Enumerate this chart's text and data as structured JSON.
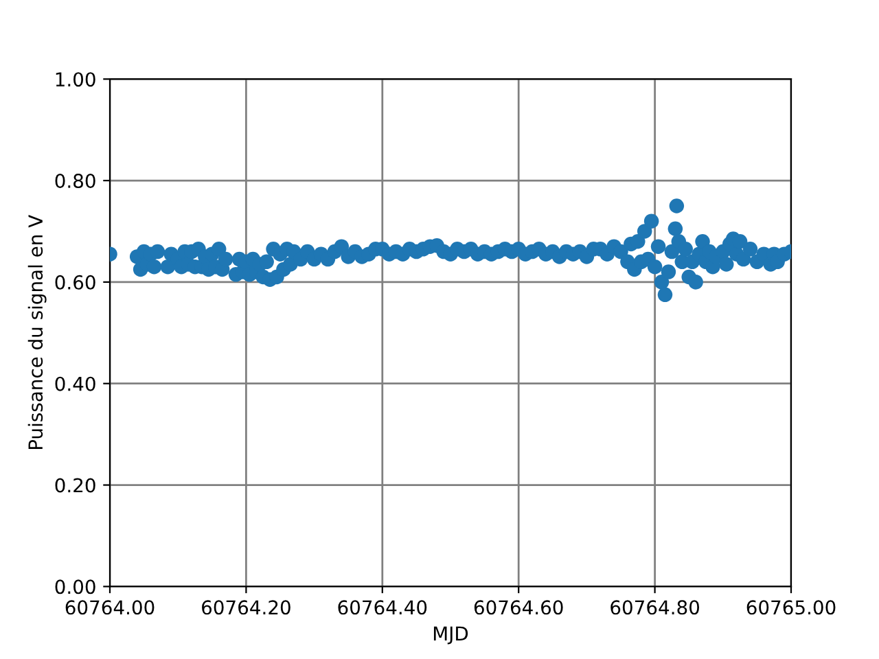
{
  "chart_data": {
    "type": "scatter",
    "xlabel": "MJD",
    "ylabel": "Puissance du signal en V",
    "grid": true,
    "marker": "circle",
    "xlim": [
      60764.0,
      60765.0
    ],
    "ylim": [
      0.0,
      1.0
    ],
    "xticks": [
      {
        "value": 60764.0,
        "label": "60764.00"
      },
      {
        "value": 60764.2,
        "label": "60764.20"
      },
      {
        "value": 60764.4,
        "label": "60764.40"
      },
      {
        "value": 60764.6,
        "label": "60764.60"
      },
      {
        "value": 60764.8,
        "label": "60764.80"
      },
      {
        "value": 60765.0,
        "label": "60765.00"
      }
    ],
    "yticks": [
      {
        "value": 0.0,
        "label": "0.00"
      },
      {
        "value": 0.2,
        "label": "0.20"
      },
      {
        "value": 0.4,
        "label": "0.40"
      },
      {
        "value": 0.6,
        "label": "0.60"
      },
      {
        "value": 0.8,
        "label": "0.80"
      },
      {
        "value": 1.0,
        "label": "1.00"
      }
    ],
    "series": [
      {
        "color": "#1f77b4",
        "x": [
          60764.0,
          60764.04,
          60764.045,
          60764.05,
          60764.055,
          60764.06,
          60764.065,
          60764.07,
          60764.085,
          60764.09,
          60764.1,
          60764.105,
          60764.11,
          60764.115,
          60764.12,
          60764.125,
          60764.13,
          60764.135,
          60764.14,
          60764.145,
          60764.15,
          60764.155,
          60764.16,
          60764.165,
          60764.17,
          60764.185,
          60764.19,
          60764.195,
          60764.2,
          60764.205,
          60764.21,
          60764.215,
          60764.22,
          60764.225,
          60764.23,
          60764.235,
          60764.24,
          60764.245,
          60764.25,
          60764.255,
          60764.26,
          60764.265,
          60764.27,
          60764.28,
          60764.29,
          60764.3,
          60764.31,
          60764.32,
          60764.33,
          60764.34,
          60764.35,
          60764.36,
          60764.37,
          60764.38,
          60764.39,
          60764.4,
          60764.41,
          60764.42,
          60764.43,
          60764.44,
          60764.45,
          60764.46,
          60764.47,
          60764.48,
          60764.49,
          60764.5,
          60764.51,
          60764.52,
          60764.53,
          60764.54,
          60764.55,
          60764.56,
          60764.57,
          60764.58,
          60764.59,
          60764.6,
          60764.61,
          60764.62,
          60764.63,
          60764.64,
          60764.65,
          60764.66,
          60764.67,
          60764.68,
          60764.69,
          60764.7,
          60764.71,
          60764.72,
          60764.73,
          60764.74,
          60764.75,
          60764.76,
          60764.765,
          60764.77,
          60764.775,
          60764.78,
          60764.785,
          60764.79,
          60764.795,
          60764.8,
          60764.805,
          60764.81,
          60764.815,
          60764.82,
          60764.825,
          60764.83,
          60764.832,
          60764.835,
          60764.84,
          60764.845,
          60764.85,
          60764.855,
          60764.86,
          60764.865,
          60764.87,
          60764.875,
          60764.88,
          60764.885,
          60764.89,
          60764.9,
          60764.905,
          60764.91,
          60764.915,
          60764.92,
          60764.925,
          60764.93,
          60764.94,
          60764.95,
          60764.96,
          60764.97,
          60764.975,
          60764.98,
          60764.99,
          60765.0
        ],
        "values": [
          0.655,
          0.65,
          0.625,
          0.66,
          0.635,
          0.655,
          0.63,
          0.66,
          0.63,
          0.655,
          0.645,
          0.63,
          0.66,
          0.635,
          0.66,
          0.63,
          0.665,
          0.63,
          0.65,
          0.625,
          0.655,
          0.63,
          0.665,
          0.625,
          0.645,
          0.615,
          0.645,
          0.62,
          0.64,
          0.615,
          0.645,
          0.62,
          0.635,
          0.61,
          0.64,
          0.605,
          0.665,
          0.61,
          0.655,
          0.625,
          0.665,
          0.635,
          0.66,
          0.645,
          0.66,
          0.645,
          0.655,
          0.645,
          0.66,
          0.67,
          0.65,
          0.66,
          0.65,
          0.655,
          0.665,
          0.665,
          0.655,
          0.66,
          0.655,
          0.665,
          0.66,
          0.665,
          0.67,
          0.672,
          0.66,
          0.655,
          0.665,
          0.66,
          0.665,
          0.655,
          0.66,
          0.655,
          0.66,
          0.665,
          0.66,
          0.665,
          0.655,
          0.66,
          0.665,
          0.655,
          0.66,
          0.65,
          0.66,
          0.655,
          0.66,
          0.65,
          0.665,
          0.665,
          0.655,
          0.67,
          0.66,
          0.64,
          0.675,
          0.625,
          0.68,
          0.64,
          0.7,
          0.645,
          0.72,
          0.63,
          0.67,
          0.6,
          0.575,
          0.62,
          0.66,
          0.705,
          0.75,
          0.68,
          0.64,
          0.665,
          0.61,
          0.64,
          0.6,
          0.655,
          0.68,
          0.64,
          0.66,
          0.63,
          0.65,
          0.66,
          0.635,
          0.675,
          0.685,
          0.655,
          0.68,
          0.645,
          0.665,
          0.64,
          0.655,
          0.635,
          0.655,
          0.64,
          0.655,
          0.66
        ]
      }
    ]
  }
}
